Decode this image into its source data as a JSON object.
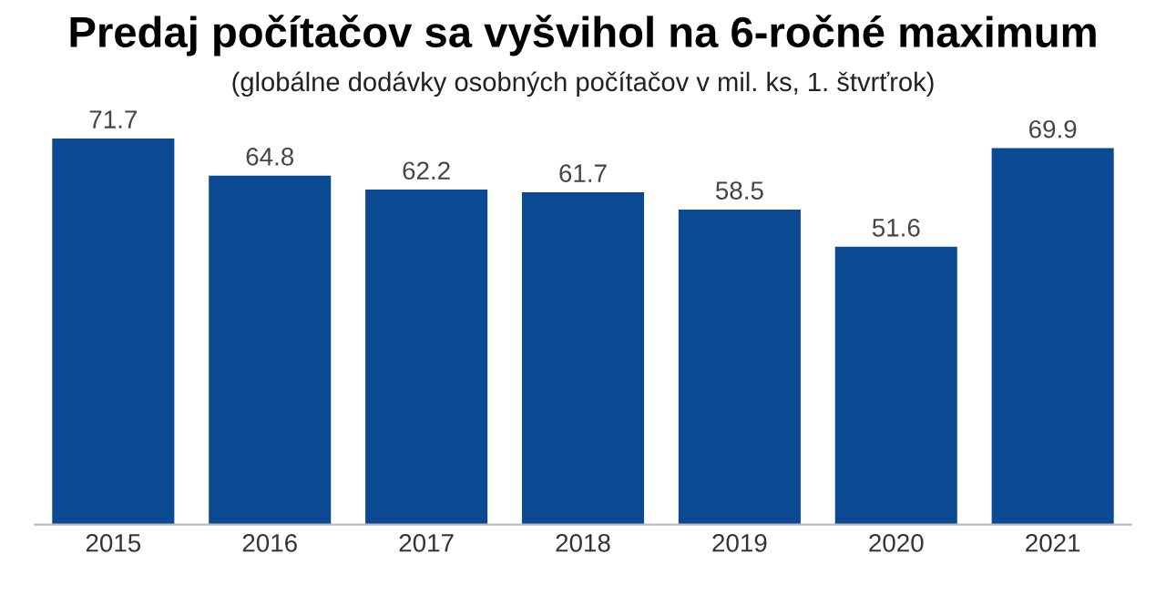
{
  "chart_data": {
    "type": "bar",
    "title": "Predaj počítačov sa vyšvihol na 6-ročné maximum",
    "subtitle": "(globálne dodávky osobných počítačov v mil. ks, 1. štvrťrok)",
    "categories": [
      "2015",
      "2016",
      "2017",
      "2018",
      "2019",
      "2020",
      "2021"
    ],
    "values": [
      71.7,
      64.8,
      62.2,
      61.7,
      58.5,
      51.6,
      69.9
    ],
    "color": "#0b4a93",
    "data_labels": true,
    "grid": false
  }
}
